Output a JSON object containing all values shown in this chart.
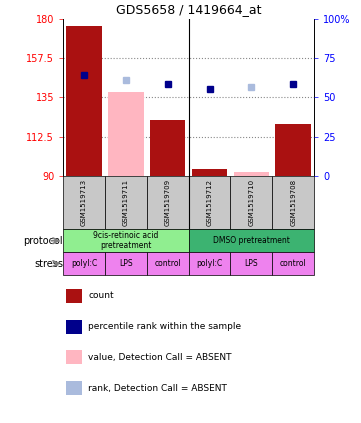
{
  "title": "GDS5658 / 1419664_at",
  "samples": [
    "GSM1519713",
    "GSM1519711",
    "GSM1519709",
    "GSM1519712",
    "GSM1519710",
    "GSM1519708"
  ],
  "bar_values_red": [
    176,
    null,
    122,
    94,
    null,
    120
  ],
  "bar_values_pink": [
    null,
    138,
    null,
    null,
    92,
    null
  ],
  "dot_blue_dark": [
    148,
    null,
    143,
    140,
    null,
    143
  ],
  "dot_blue_light": [
    null,
    145,
    null,
    null,
    141,
    null
  ],
  "ylim": [
    90,
    180
  ],
  "yticks": [
    90,
    112.5,
    135,
    157.5,
    180
  ],
  "y2lim": [
    0,
    100
  ],
  "y2ticks": [
    0,
    25,
    50,
    75,
    100
  ],
  "y2labels": [
    "0",
    "25",
    "50",
    "75",
    "100%"
  ],
  "protocol_groups": [
    {
      "label": "9cis-retinoic acid\npretreatment",
      "start": 0,
      "end": 3,
      "color": "#90EE90"
    },
    {
      "label": "DMSO pretreatment",
      "start": 3,
      "end": 6,
      "color": "#3CB371"
    }
  ],
  "stress_labels": [
    "polyI:C",
    "LPS",
    "control",
    "polyI:C",
    "LPS",
    "control"
  ],
  "stress_color": "#EE82EE",
  "sample_box_color": "#C8C8C8",
  "bar_color_red": "#AA1111",
  "bar_color_pink": "#FFB6C1",
  "dot_color_dark_blue": "#00008B",
  "dot_color_light_blue": "#AABBDD",
  "grid_color": "#888888",
  "legend_items": [
    {
      "color": "#AA1111",
      "marker": "square",
      "label": "count"
    },
    {
      "color": "#00008B",
      "marker": "square",
      "label": "percentile rank within the sample"
    },
    {
      "color": "#FFB6C1",
      "marker": "square",
      "label": "value, Detection Call = ABSENT"
    },
    {
      "color": "#AABBDD",
      "marker": "square",
      "label": "rank, Detection Call = ABSENT"
    }
  ]
}
